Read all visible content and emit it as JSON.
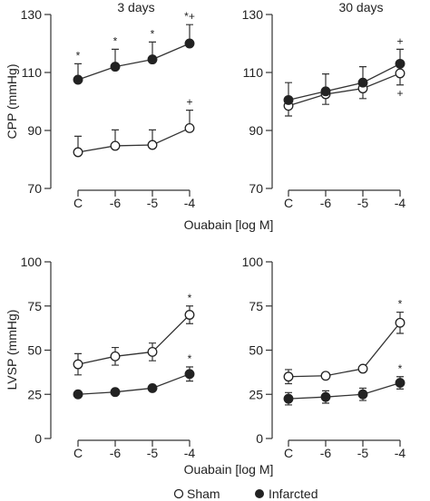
{
  "chart_data": [
    {
      "id": "cpp-3d",
      "type": "line",
      "title": "3 days",
      "ylabel": "CPP (mmHg)",
      "xlabel": "",
      "categories": [
        "C",
        "-6",
        "-5",
        "-4"
      ],
      "ylim": [
        70,
        130
      ],
      "yticks": [
        70,
        90,
        110,
        130
      ],
      "series": [
        {
          "name": "Sham",
          "values": [
            82.5,
            84.7,
            85,
            90.8
          ],
          "err": [
            5.5,
            5.5,
            5.2,
            6.2
          ],
          "errDir": "up",
          "annotations": [
            "",
            "",
            "",
            "+"
          ]
        },
        {
          "name": "Infarcted",
          "values": [
            107.5,
            112,
            114.5,
            120
          ],
          "err": [
            5.5,
            6,
            6,
            6.5
          ],
          "errDir": "up",
          "annotations": [
            "*",
            "*",
            "*",
            "*+"
          ]
        }
      ]
    },
    {
      "id": "cpp-30d",
      "type": "line",
      "title": "30 days",
      "ylabel": "",
      "xlabel": "",
      "categories": [
        "C",
        "-6",
        "-5",
        "-4"
      ],
      "ylim": [
        70,
        130
      ],
      "yticks": [
        70,
        90,
        110,
        130
      ],
      "series": [
        {
          "name": "Sham",
          "values": [
            98.5,
            102.5,
            104.5,
            109.7
          ],
          "err": [
            3.5,
            3.5,
            3.5,
            4
          ],
          "errDir": "down",
          "annotations": [
            "",
            "",
            "",
            "+"
          ]
        },
        {
          "name": "Infarcted",
          "values": [
            100.5,
            103.5,
            106.5,
            113
          ],
          "err": [
            6,
            6,
            5.5,
            5
          ],
          "errDir": "up",
          "annotations": [
            "",
            "",
            "",
            "+"
          ]
        }
      ]
    },
    {
      "id": "lvsp-3d",
      "type": "line",
      "title": "",
      "ylabel": "LVSP  (mmHg)",
      "xlabel": "",
      "categories": [
        "C",
        "-6",
        "-5",
        "-4"
      ],
      "ylim": [
        0,
        100
      ],
      "yticks": [
        0,
        25,
        50,
        75,
        100
      ],
      "series": [
        {
          "name": "Sham",
          "values": [
            42,
            46.5,
            49,
            70
          ],
          "err": [
            6,
            5,
            5,
            5
          ],
          "errDir": "both",
          "annotations": [
            "",
            "",
            "",
            "*"
          ]
        },
        {
          "name": "Infarcted",
          "values": [
            25,
            26.3,
            28.5,
            36.5
          ],
          "err": [
            1,
            1,
            1.5,
            4
          ],
          "errDir": "both",
          "annotations": [
            "",
            "",
            "",
            "*"
          ]
        }
      ]
    },
    {
      "id": "lvsp-30d",
      "type": "line",
      "title": "",
      "ylabel": "",
      "xlabel": "",
      "categories": [
        "C",
        "-6",
        "-5",
        "-4"
      ],
      "ylim": [
        0,
        100
      ],
      "yticks": [
        0,
        25,
        50,
        75,
        100
      ],
      "series": [
        {
          "name": "Sham",
          "values": [
            35,
            35.5,
            39.5,
            65.5
          ],
          "err": [
            4,
            1,
            1,
            6
          ],
          "errDir": "both",
          "annotations": [
            "",
            "",
            "",
            "*"
          ]
        },
        {
          "name": "Infarcted",
          "values": [
            22.5,
            23.5,
            25,
            31.5
          ],
          "err": [
            3.5,
            3.5,
            3.5,
            3.5
          ],
          "errDir": "both",
          "annotations": [
            "",
            "",
            "",
            "*"
          ]
        }
      ]
    }
  ],
  "shared_xlabel": "Ouabain [log M]",
  "legend": [
    {
      "name": "Sham",
      "marker": "open-circle"
    },
    {
      "name": "Infarcted",
      "marker": "filled-circle"
    }
  ],
  "colors": {
    "ink": "#222222",
    "open_fill": "#ffffff",
    "filled_fill": "#222222"
  }
}
